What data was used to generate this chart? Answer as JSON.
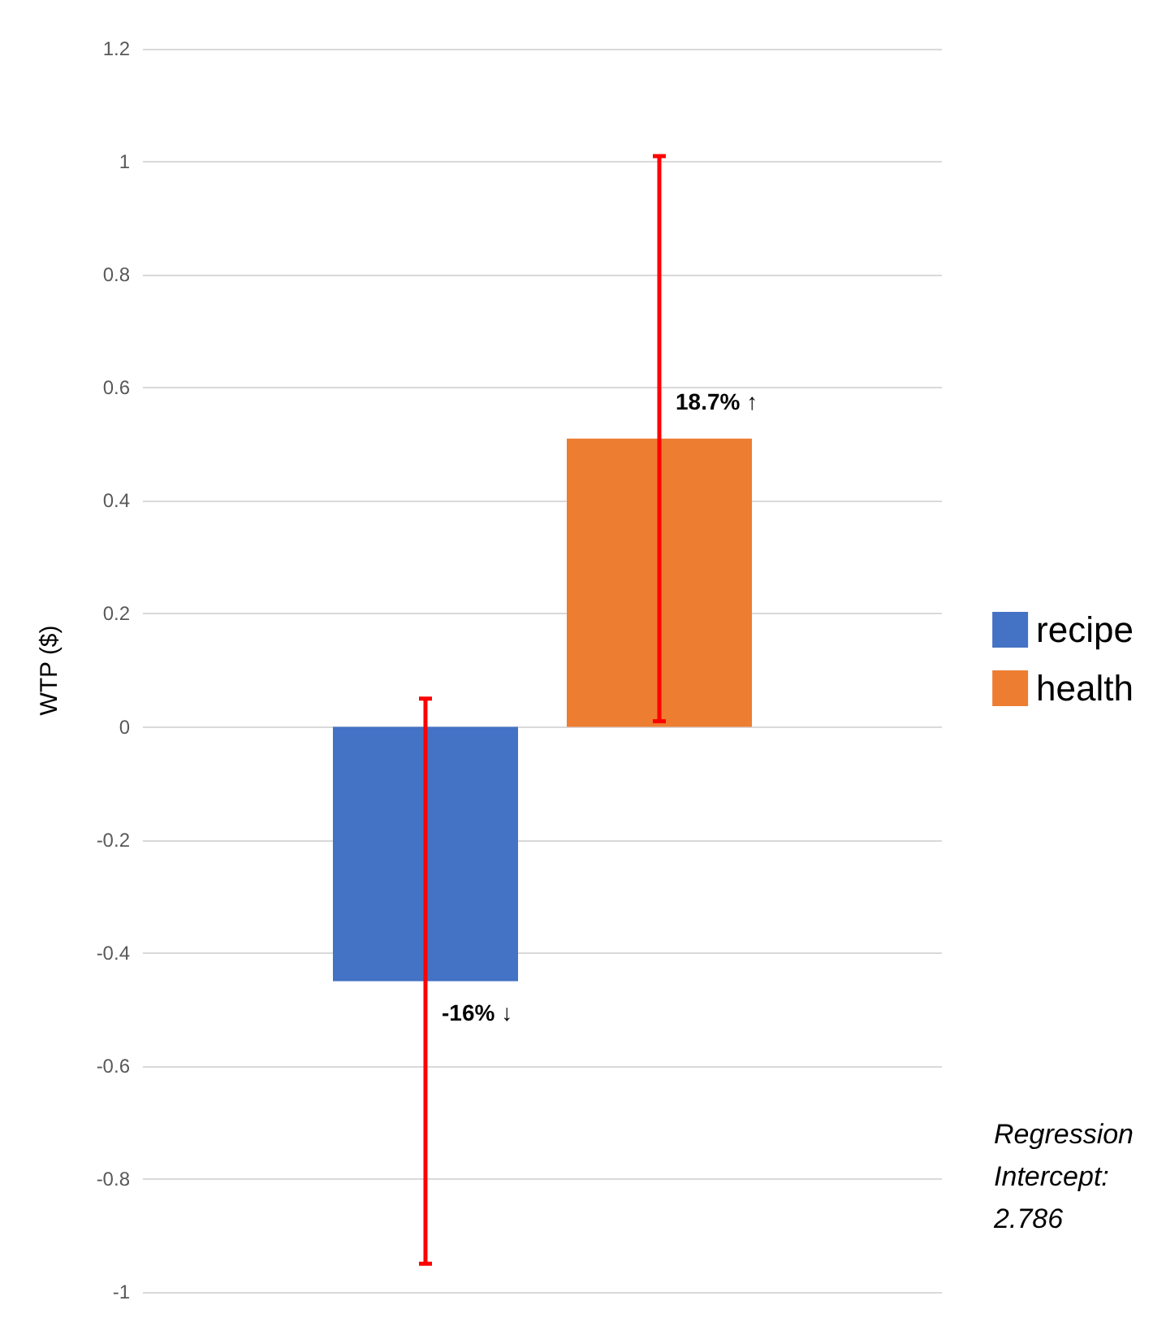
{
  "chart_data": {
    "type": "bar",
    "ylabel": "WTP ($)",
    "categories": [
      null
    ],
    "series": [
      {
        "name": "recipe",
        "color": "#4472c4",
        "values": [
          -0.45
        ],
        "errors": [
          [
            -0.95,
            0.05
          ]
        ]
      },
      {
        "name": "health",
        "color": "#ed7d31",
        "values": [
          0.51
        ],
        "errors": [
          [
            0.01,
            1.01
          ]
        ]
      }
    ],
    "ylim": [
      -1,
      1.2
    ],
    "yticks": [
      -1,
      -0.8,
      -0.6,
      -0.4,
      -0.2,
      0,
      0.2,
      0.4,
      0.6,
      0.8,
      1,
      1.2
    ],
    "grid": "y",
    "legend": "right",
    "annotations": [
      {
        "text": "-16% ↓",
        "y": -0.45
      },
      {
        "text": "18.7% ↑",
        "y": 0.51
      },
      "Regression Intercept: 2.786"
    ]
  }
}
